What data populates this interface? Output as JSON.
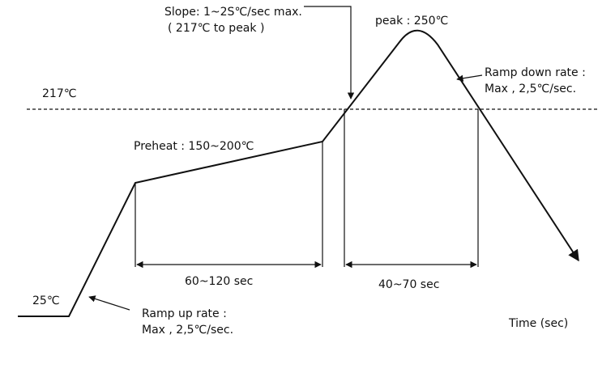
{
  "labels": {
    "slope": "Slope: 1~2S℃/sec max.",
    "slope_range": "( 217℃ to peak )",
    "peak": "peak : 250℃",
    "ramp_down": "Ramp down rate :",
    "ramp_down_value": "Max , 2,5℃/sec.",
    "liquidus": "217℃",
    "preheat": "Preheat : 150~200℃",
    "preheat_time": "60~120 sec",
    "reflow_time": "40~70 sec",
    "start": "25℃",
    "ramp_up": "Ramp up rate :",
    "ramp_up_value": "Max , 2,5℃/sec.",
    "x_axis": "Time (sec)"
  }
}
